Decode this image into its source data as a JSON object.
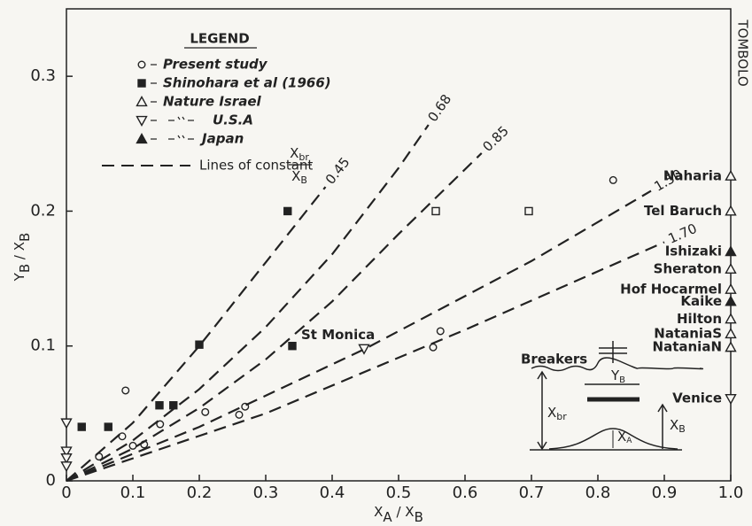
{
  "chart_data": {
    "type": "scatter",
    "x_label": [
      "X",
      "A",
      " / X",
      "B"
    ],
    "y_label": [
      "Y",
      "B",
      " / X",
      "B"
    ],
    "side_label": "TOMBOLO",
    "xlim": [
      0,
      1
    ],
    "ylim": [
      0,
      0.35
    ],
    "xticks": [
      0,
      0.1,
      0.2,
      0.3,
      0.4,
      0.5,
      0.6,
      0.7,
      0.8,
      0.9,
      {
        "value": 1,
        "label": "1.0"
      }
    ],
    "yticks": [
      0,
      0.1,
      0.2,
      0.3
    ],
    "legend_title": "LEGEND",
    "lines_legend": {
      "text": "Lines of constant",
      "numerator": [
        "X",
        "br"
      ],
      "denominator": [
        "X",
        "B"
      ]
    },
    "series": [
      {
        "name": "Present study",
        "kind": "scatter",
        "marker": "circle-open",
        "color": "#222",
        "x": [
          0.049,
          0.084,
          0.1,
          0.117,
          0.089,
          0.141,
          0.209,
          0.26,
          0.269,
          0.552,
          0.563,
          0.823
        ],
        "values": [
          0.018,
          0.033,
          0.026,
          0.027,
          0.067,
          0.042,
          0.051,
          0.049,
          0.055,
          0.099,
          0.111,
          0.223
        ]
      },
      {
        "name": "Shinohara et al (1966)",
        "kind": "scatter",
        "marker": "square-filled",
        "color": "#222",
        "x": [
          0.023,
          0.063,
          0.14,
          0.161,
          0.2,
          0.34,
          0.333
        ],
        "values": [
          0.04,
          0.04,
          0.056,
          0.056,
          0.101,
          0.1,
          0.2
        ],
        "point_labels": [
          null,
          null,
          null,
          null,
          null,
          "St Monica",
          null
        ]
      },
      {
        "kind": "scatter",
        "marker": "square-open",
        "color": "#222",
        "x": [
          0.556,
          0.696
        ],
        "values": [
          0.2,
          0.2
        ]
      },
      {
        "name": "Nature Israel",
        "kind": "scatter",
        "marker": "triangle-up-open",
        "color": "#222",
        "x": [
          1,
          1,
          1,
          1,
          1,
          1,
          1
        ],
        "values": [
          0.226,
          0.2,
          0.157,
          0.142,
          0.12,
          0.109,
          0.099
        ],
        "point_labels": [
          "Naharia",
          "Tel Baruch",
          "Sheraton",
          "Hof Hocarmel",
          "Hilton",
          "NataniaS",
          "NataniaN"
        ]
      },
      {
        "name": "U.S.A",
        "kind": "scatter",
        "marker": "triangle-down-open",
        "color": "#222",
        "x": [
          0,
          0,
          0,
          0,
          0.448,
          1
        ],
        "values": [
          0.043,
          0.022,
          0.017,
          0.011,
          0.098,
          0.061
        ],
        "point_labels": [
          null,
          null,
          null,
          null,
          null,
          "Venice"
        ]
      },
      {
        "name": "Japan",
        "kind": "scatter",
        "marker": "triangle-up-filled",
        "color": "#222",
        "x": [
          1,
          1
        ],
        "values": [
          0.17,
          0.133
        ],
        "point_labels": [
          "Ishizaki",
          "Kaike"
        ]
      },
      {
        "name": "0.45",
        "kind": "line",
        "style": "dashed",
        "color": "#222",
        "x": [
          0,
          0.1,
          0.2,
          0.3,
          0.39
        ],
        "values": [
          0,
          0.043,
          0.1,
          0.162,
          0.218
        ]
      },
      {
        "name": "0.68",
        "kind": "line",
        "style": "dashed",
        "color": "#222",
        "x": [
          0,
          0.1,
          0.2,
          0.3,
          0.4,
          0.5,
          0.545
        ],
        "values": [
          0,
          0.03,
          0.068,
          0.114,
          0.168,
          0.232,
          0.264
        ]
      },
      {
        "name": "0.85",
        "kind": "line",
        "style": "dashed",
        "color": "#222",
        "x": [
          0,
          0.1,
          0.2,
          0.3,
          0.4,
          0.5,
          0.625
        ],
        "values": [
          0,
          0.024,
          0.054,
          0.09,
          0.133,
          0.183,
          0.243
        ]
      },
      {
        "name": "1.50",
        "kind": "line",
        "style": "dashed",
        "color": "#222",
        "x": [
          0,
          0.2,
          0.45,
          0.7,
          0.88
        ],
        "values": [
          0,
          0.04,
          0.098,
          0.163,
          0.215
        ]
      },
      {
        "name": "1.70",
        "kind": "line",
        "style": "dashed",
        "color": "#222",
        "x": [
          0,
          0.3,
          0.6,
          0.9
        ],
        "values": [
          0,
          0.05,
          0.112,
          0.177
        ]
      }
    ],
    "inset": {
      "breakers": "Breakers",
      "yb": [
        "Y",
        "B"
      ],
      "xbr": [
        "X",
        "br"
      ],
      "xb": [
        "X",
        "B"
      ],
      "xa": [
        "X",
        "A"
      ]
    }
  }
}
